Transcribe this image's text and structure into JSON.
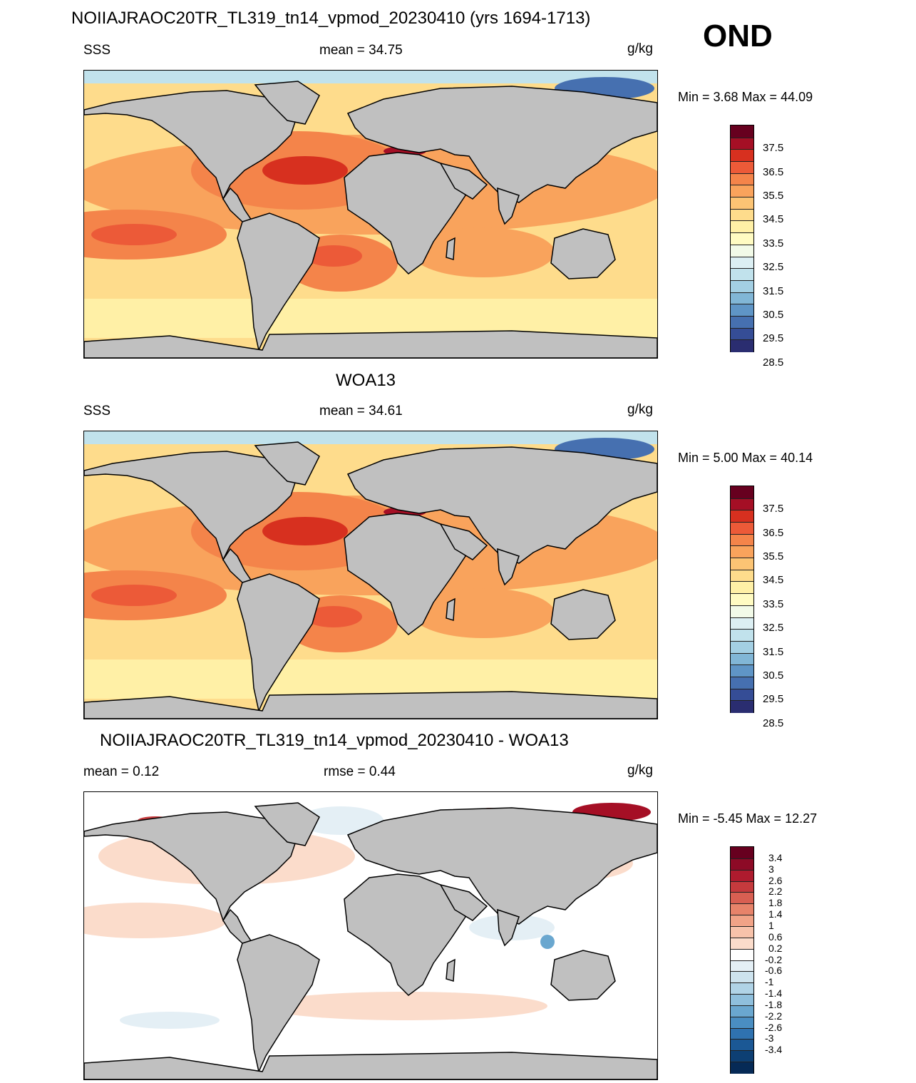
{
  "season": "OND",
  "panels": [
    {
      "title": "NOIIAJRAOC20TR_TL319_tn14_vpmod_20230410 (yrs 1694-1713)",
      "left_label": "SSS",
      "center_label": "mean =  34.75",
      "units": "g/kg",
      "minmax": "Min =   3.68 Max =  44.09",
      "kind": "salinity"
    },
    {
      "title": "WOA13",
      "left_label": "SSS",
      "center_label": "mean =  34.61",
      "units": "g/kg",
      "minmax": "Min =   5.00 Max =  40.14",
      "kind": "salinity"
    },
    {
      "title": "NOIIAJRAOC20TR_TL319_tn14_vpmod_20230410 - WOA13",
      "left_label": "mean =   0.12",
      "center_label": "rmse =   0.44",
      "units": "g/kg",
      "minmax": "Min =  -5.45 Max =  12.27",
      "kind": "difference"
    }
  ],
  "salinity_colorbar": {
    "labels": [
      "37.5",
      "36.5",
      "35.5",
      "34.5",
      "33.5",
      "32.5",
      "31.5",
      "30.5",
      "29.5",
      "28.5"
    ],
    "colors": [
      "#67001f",
      "#a50f25",
      "#d7301f",
      "#ec5a38",
      "#f4844a",
      "#f9a35c",
      "#fcc474",
      "#fedc8c",
      "#fff0a6",
      "#fffbc2",
      "#f2fae8",
      "#dceff3",
      "#c1e2ec",
      "#a3cfe3",
      "#81b6d6",
      "#5f95c6",
      "#4670b0",
      "#354d96",
      "#2a2d70"
    ]
  },
  "difference_colorbar": {
    "labels": [
      "3.4",
      "3",
      "2.6",
      "2.2",
      "1.8",
      "1.4",
      "1",
      "0.6",
      "0.2",
      "-0.2",
      "-0.6",
      "-1",
      "-1.4",
      "-1.8",
      "-2.2",
      "-2.6",
      "-3",
      "-3.4"
    ],
    "colors": [
      "#67001f",
      "#8d0a26",
      "#ae1b2e",
      "#c53a3d",
      "#d85f52",
      "#e7836a",
      "#f1a387",
      "#f7c2aa",
      "#fbdccb",
      "#ffffff",
      "#e4eff5",
      "#cde3ee",
      "#b0d3e6",
      "#8fbfdc",
      "#6aa7cf",
      "#4a8ec2",
      "#2f72b0",
      "#1b5895",
      "#0d3f73",
      "#062a56"
    ]
  },
  "colors": {
    "land": "#c0c0c0",
    "coast": "#000000"
  }
}
